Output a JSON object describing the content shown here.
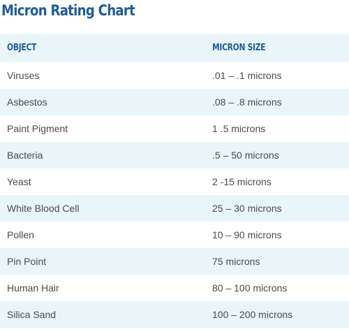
{
  "title": "Micron Rating Chart",
  "colors": {
    "title": "#1f5c99",
    "header_text": "#1f5c99",
    "row_shade": "#eaf5fa",
    "body_text": "#4a4a4a"
  },
  "table": {
    "headers": [
      "OBJECT",
      "MICRON SIZE"
    ],
    "rows": [
      [
        "Viruses",
        ".01 – .1 microns"
      ],
      [
        "Asbestos",
        ".08 – .8 microns"
      ],
      [
        "Paint Pigment",
        "1 .5 microns"
      ],
      [
        "Bacteria",
        ".5 – 50 microns"
      ],
      [
        "Yeast",
        "2 -15 microns"
      ],
      [
        "White Blood Cell",
        "25 – 30 microns"
      ],
      [
        "Pollen",
        "10 – 90 microns"
      ],
      [
        "Pin Point",
        "75 microns"
      ],
      [
        "Human Hair",
        "80 – 100 microns"
      ],
      [
        "Silica Sand",
        "100 – 200 microns"
      ]
    ]
  }
}
